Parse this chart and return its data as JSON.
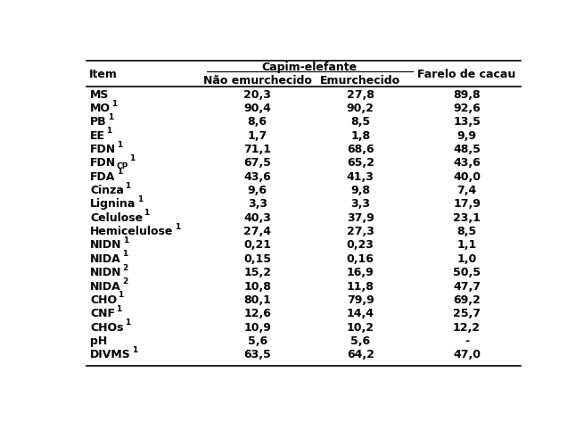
{
  "rows": [
    [
      "MS",
      "",
      "20,3",
      "27,8",
      "89,8"
    ],
    [
      "MO",
      "1",
      "90,4",
      "90,2",
      "92,6"
    ],
    [
      "PB",
      "1",
      "8,6",
      "8,5",
      "13,5"
    ],
    [
      "EE",
      "1",
      "1,7",
      "1,8",
      "9,9"
    ],
    [
      "FDN",
      "1",
      "71,1",
      "68,6",
      "48,5"
    ],
    [
      "FDN_CP",
      "1",
      "67,5",
      "65,2",
      "43,6"
    ],
    [
      "FDA",
      "1",
      "43,6",
      "41,3",
      "40,0"
    ],
    [
      "Cinza",
      "1",
      "9,6",
      "9,8",
      "7,4"
    ],
    [
      "Lignina",
      "1",
      "3,3",
      "3,3",
      "17,9"
    ],
    [
      "Celulose",
      "1",
      "40,3",
      "37,9",
      "23,1"
    ],
    [
      "Hemicelulose",
      "1",
      "27,4",
      "27,3",
      "8,5"
    ],
    [
      "NIDN",
      "1",
      "0,21",
      "0,23",
      "1,1"
    ],
    [
      "NIDA",
      "1",
      "0,15",
      "0,16",
      "1,0"
    ],
    [
      "NIDN",
      "2",
      "15,2",
      "16,9",
      "50,5"
    ],
    [
      "NIDA",
      "2",
      "10,8",
      "11,8",
      "47,7"
    ],
    [
      "CHO",
      "1",
      "80,1",
      "79,9",
      "69,2"
    ],
    [
      "CNF",
      "1",
      "12,6",
      "14,4",
      "25,7"
    ],
    [
      "CHOs",
      "1",
      "10,9",
      "10,2",
      "12,2"
    ],
    [
      "pH",
      "",
      "5,6",
      "5,6",
      "-"
    ],
    [
      "DIVMS",
      "1",
      "63,5",
      "64,2",
      "47,0"
    ]
  ],
  "header1_item": "Item",
  "header1_capim": "Capim-elefante",
  "header1_farelo": "Farelo de cacau",
  "header2_nao": "Não emurchecido",
  "header2_emur": "Emurchecido",
  "fig_width": 6.55,
  "fig_height": 4.73,
  "font_size": 9.0,
  "sup_font_size": 6.5,
  "sub_font_size": 6.5
}
